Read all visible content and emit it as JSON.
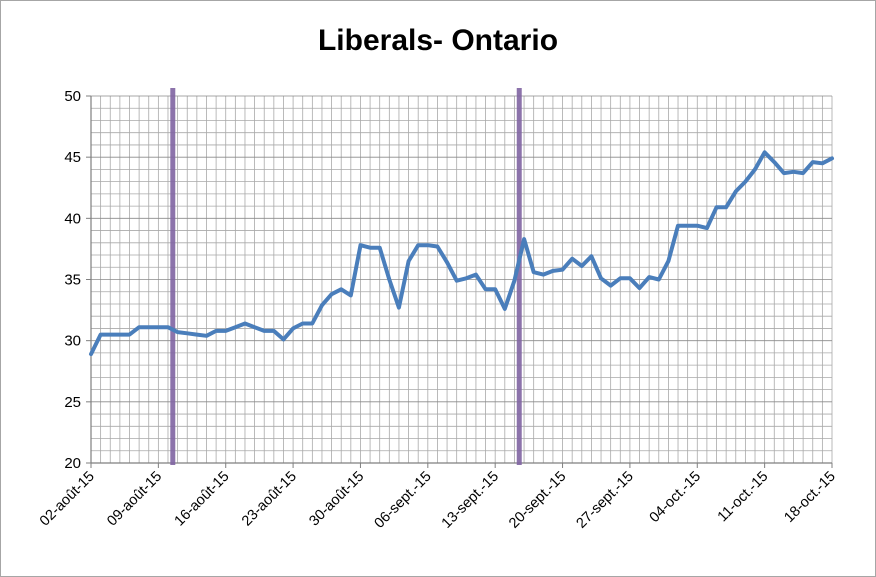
{
  "chart_data": {
    "type": "line",
    "title": "Liberals- Ontario",
    "xlabel": "",
    "ylabel": "",
    "ylim": [
      20,
      50
    ],
    "y_ticks": [
      20,
      25,
      30,
      35,
      40,
      45,
      50
    ],
    "x_tick_labels": [
      "02-août-15",
      "09-août-15",
      "16-août-15",
      "23-août-15",
      "30-août-15",
      "06-sept.-15",
      "13-sept.-15",
      "20-sept.-15",
      "27-sept.-15",
      "04-oct.-15",
      "11-oct.-15",
      "18-oct.-15"
    ],
    "grid": true,
    "legend": "none",
    "line_color": "#4a7ebb",
    "marker_line_color": "#8064a2",
    "vertical_markers_at_day": [
      8.5,
      44.5
    ],
    "series": [
      {
        "x": [
          0,
          1,
          2,
          3,
          4,
          5,
          6,
          7,
          8,
          9,
          10,
          11,
          12,
          13,
          14,
          15,
          16,
          17,
          18,
          19,
          20,
          21,
          22,
          23,
          24,
          25,
          26,
          27,
          28,
          29,
          30,
          31,
          32,
          33,
          34,
          35,
          36,
          37,
          38,
          39,
          40,
          41,
          42,
          43,
          44,
          45,
          46,
          47,
          48,
          49,
          50,
          51,
          52,
          53,
          54,
          55,
          56,
          57,
          58,
          59,
          60,
          61,
          62,
          63,
          64,
          65,
          66,
          67,
          68,
          69,
          70,
          71,
          72,
          73,
          74,
          75,
          76,
          77
        ],
        "values": [
          28.9,
          30.5,
          30.5,
          30.5,
          30.5,
          31.1,
          31.1,
          31.1,
          31.1,
          30.7,
          30.6,
          30.5,
          30.4,
          30.8,
          30.8,
          31.1,
          31.4,
          31.1,
          30.8,
          30.8,
          30.1,
          31.0,
          31.4,
          31.4,
          32.9,
          33.8,
          34.2,
          33.7,
          37.8,
          37.6,
          37.6,
          35.0,
          32.7,
          36.5,
          37.8,
          37.8,
          37.7,
          36.4,
          34.9,
          35.1,
          35.4,
          34.2,
          34.2,
          32.6,
          34.9,
          38.3,
          35.6,
          35.4,
          35.7,
          35.8,
          36.7,
          36.1,
          36.9,
          35.1,
          34.5,
          35.1,
          35.1,
          34.3,
          35.2,
          35.0,
          36.5,
          39.4,
          39.4,
          39.4,
          39.2,
          40.9,
          40.9,
          42.2,
          43.0,
          44.0,
          45.4,
          44.6,
          43.7,
          43.8,
          43.7,
          44.6,
          44.5,
          44.9
        ]
      }
    ]
  }
}
